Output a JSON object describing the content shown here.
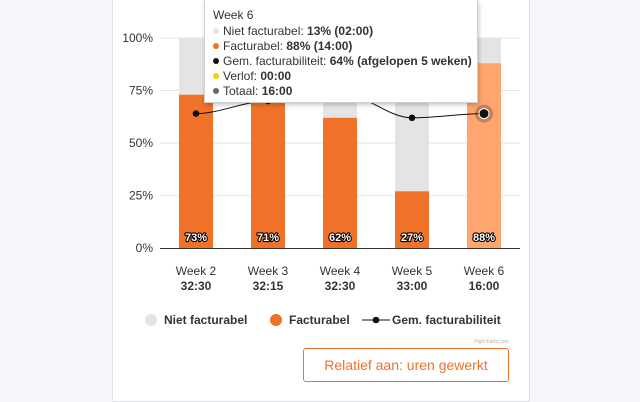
{
  "chart_data": {
    "type": "bar",
    "stacked": true,
    "categories": [
      "Week 2",
      "Week 3",
      "Week 4",
      "Week 5",
      "Week 6"
    ],
    "category_totals": [
      "32:30",
      "32:15",
      "32:30",
      "33:00",
      "16:00"
    ],
    "ylim": [
      0,
      100
    ],
    "yticks": [
      0,
      25,
      50,
      75,
      100
    ],
    "ytick_labels": [
      "0%",
      "25%",
      "50%",
      "75%",
      "100%"
    ],
    "grid": true,
    "data_labels": [
      "73%",
      "71%",
      "62%",
      "27%",
      "88%"
    ],
    "highlighted_category": "Week 6",
    "series": [
      {
        "name": "Niet facturabel",
        "type": "bar",
        "values": [
          27,
          29,
          38,
          73,
          13
        ]
      },
      {
        "name": "Facturabel",
        "type": "bar",
        "values": [
          73,
          71,
          62,
          27,
          88
        ]
      },
      {
        "name": "Gem. facturabiliteit",
        "type": "line",
        "values": [
          64,
          70,
          74,
          62,
          64
        ]
      }
    ],
    "legend_position": "bottom"
  },
  "tooltip": {
    "title": "Week 6",
    "rows": [
      {
        "label": "Niet facturabel: ",
        "value": "13% (02:00)"
      },
      {
        "label": "Facturabel: ",
        "value": "88% (14:00)"
      },
      {
        "label": "Gem. facturabiliteit: ",
        "value": "64% (afgelopen 5 weken)"
      },
      {
        "label": "Verlof: ",
        "value": "00:00"
      },
      {
        "label": "Totaal: ",
        "value": "16:00"
      }
    ]
  },
  "credits": "Highcharts.com",
  "button_label": "Relatief aan: uren gewerkt",
  "colors": {
    "niet_facturabel": "#e4e4e4",
    "facturabel": "#f07128",
    "facturabel_highlight": "#ffa56f",
    "line": "#111111",
    "verlof": "#f0d000",
    "totaal": "#666666"
  }
}
